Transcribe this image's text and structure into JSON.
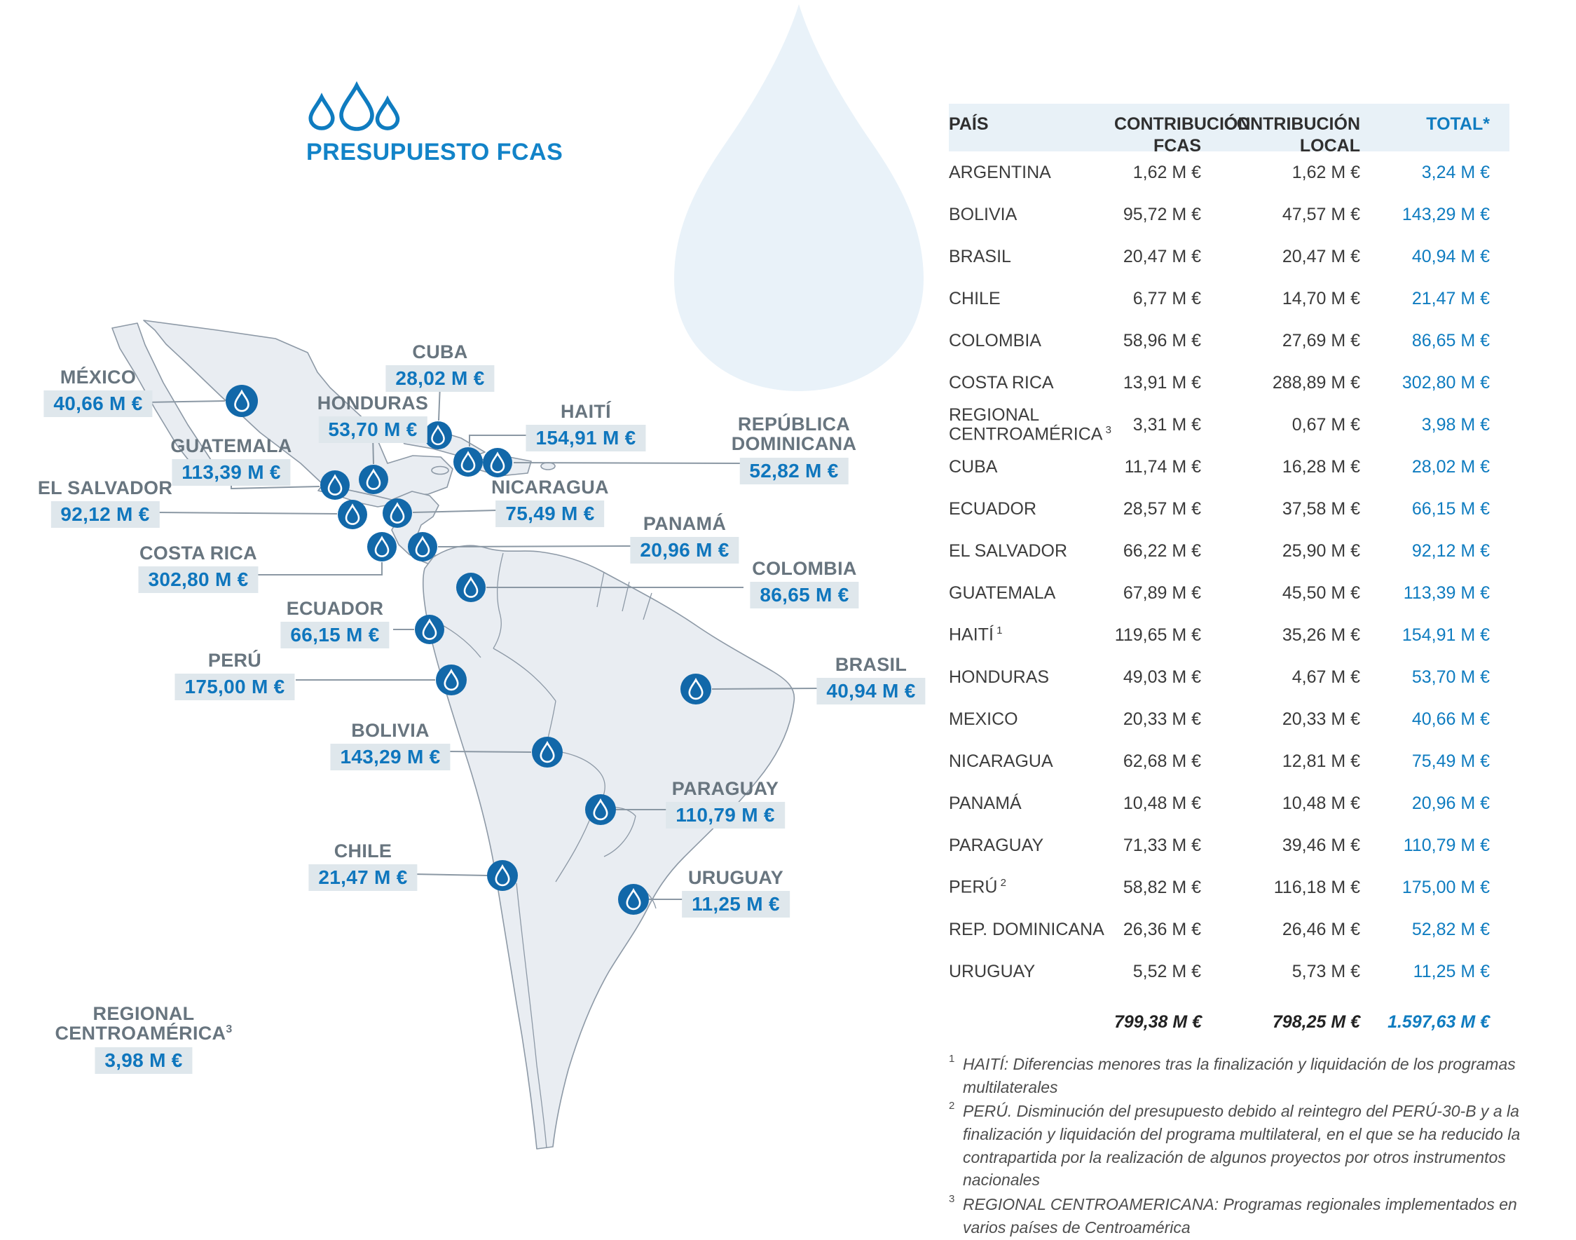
{
  "logo": {
    "title": "PRESUPUESTO FCAS",
    "icon": "three-water-drops-icon"
  },
  "colors": {
    "accent_blue": "#0f7cc0",
    "title_blue": "#1283c8",
    "marker_blue": "#1268a9",
    "label_gray": "#68757f",
    "value_box_bg": "#dfe7ec",
    "map_fill": "#e9edf2",
    "map_stroke": "#8d99a6",
    "table_header_bg": "#e8f1f7",
    "watermark_blue": "#e9f2f9"
  },
  "map": {
    "labels": {
      "mexico": {
        "name": "MÉXICO",
        "value": "40,66 M €"
      },
      "cuba": {
        "name": "CUBA",
        "value": "28,02 M €"
      },
      "honduras": {
        "name": "HONDURAS",
        "value": "53,70 M €"
      },
      "haiti": {
        "name": "HAITÍ",
        "value": "154,91 M €"
      },
      "dominicana": {
        "name": "REPÚBLICA\nDOMINICANA",
        "value": "52,82 M €"
      },
      "guatemala": {
        "name": "GUATEMALA",
        "value": "113,39 M €"
      },
      "salvador": {
        "name": "EL SALVADOR",
        "value": "92,12 M €"
      },
      "nicaragua": {
        "name": "NICARAGUA",
        "value": "75,49 M €"
      },
      "panama": {
        "name": "PANAMÁ",
        "value": "20,96 M €"
      },
      "costarica": {
        "name": "COSTA RICA",
        "value": "302,80 M €"
      },
      "colombia": {
        "name": "COLOMBIA",
        "value": "86,65 M €"
      },
      "ecuador": {
        "name": "ECUADOR",
        "value": "66,15 M €"
      },
      "peru": {
        "name": "PERÚ",
        "value": "175,00 M €"
      },
      "brasil": {
        "name": "BRASIL",
        "value": "40,94 M €"
      },
      "bolivia": {
        "name": "BOLIVIA",
        "value": "143,29 M €"
      },
      "paraguay": {
        "name": "PARAGUAY",
        "value": "110,79 M €"
      },
      "chile": {
        "name": "CHILE",
        "value": "21,47 M €"
      },
      "uruguay": {
        "name": "URUGUAY",
        "value": "11,25 M €"
      },
      "regional": {
        "name": "REGIONAL\nCENTROAMÉRICA",
        "sup": "3",
        "value": "3,98 M €"
      }
    }
  },
  "table": {
    "headers": {
      "pais": "PAÍS",
      "fcas": "CONTRIBUCIÓN\nFCAS",
      "local": "CONTRIBUCIÓN\nLOCAL",
      "total": "TOTAL*"
    },
    "rows": [
      {
        "pais": "ARGENTINA",
        "fcas": "1,62 M €",
        "local": "1,62 M €",
        "total": "3,24 M €"
      },
      {
        "pais": "BOLIVIA",
        "fcas": "95,72 M €",
        "local": "47,57 M €",
        "total": "143,29 M €"
      },
      {
        "pais": "BRASIL",
        "fcas": "20,47 M €",
        "local": "20,47 M €",
        "total": "40,94 M €"
      },
      {
        "pais": "CHILE",
        "fcas": "6,77 M €",
        "local": "14,70 M €",
        "total": "21,47 M €"
      },
      {
        "pais": "COLOMBIA",
        "fcas": "58,96 M €",
        "local": "27,69 M €",
        "total": "86,65 M €"
      },
      {
        "pais": "COSTA RICA",
        "fcas": "13,91 M €",
        "local": "288,89 M €",
        "total": "302,80 M €"
      },
      {
        "pais": "REGIONAL CENTROAMÉRICA",
        "sup": "3",
        "fcas": "3,31 M €",
        "local": "0,67 M €",
        "total": "3,98 M €"
      },
      {
        "pais": "CUBA",
        "fcas": "11,74 M €",
        "local": "16,28 M €",
        "total": "28,02 M €"
      },
      {
        "pais": "ECUADOR",
        "fcas": "28,57 M €",
        "local": "37,58 M €",
        "total": "66,15 M €"
      },
      {
        "pais": "EL SALVADOR",
        "fcas": "66,22 M €",
        "local": "25,90 M €",
        "total": "92,12 M €"
      },
      {
        "pais": "GUATEMALA",
        "fcas": "67,89 M €",
        "local": "45,50 M €",
        "total": "113,39 M €"
      },
      {
        "pais": "HAITÍ",
        "sup": "1",
        "fcas": "119,65 M €",
        "local": "35,26 M €",
        "total": "154,91 M €"
      },
      {
        "pais": "HONDURAS",
        "fcas": "49,03 M €",
        "local": "4,67 M €",
        "total": "53,70 M €"
      },
      {
        "pais": "MEXICO",
        "fcas": "20,33 M €",
        "local": "20,33 M €",
        "total": "40,66 M €"
      },
      {
        "pais": "NICARAGUA",
        "fcas": "62,68 M €",
        "local": "12,81 M €",
        "total": "75,49 M €"
      },
      {
        "pais": "PANAMÁ",
        "fcas": "10,48 M €",
        "local": "10,48 M €",
        "total": "20,96 M €"
      },
      {
        "pais": "PARAGUAY",
        "fcas": "71,33 M €",
        "local": "39,46 M €",
        "total": "110,79 M €"
      },
      {
        "pais": "PERÚ",
        "sup": "2",
        "fcas": "58,82 M €",
        "local": "116,18 M €",
        "total": "175,00 M €"
      },
      {
        "pais": "REP. DOMINICANA",
        "fcas": "26,36 M €",
        "local": "26,46 M €",
        "total": "52,82 M €"
      },
      {
        "pais": "URUGUAY",
        "fcas": "5,52 M €",
        "local": "5,73 M €",
        "total": "11,25 M €"
      }
    ],
    "totals": {
      "fcas": "799,38 M €",
      "local": "798,25 M €",
      "total": "1.597,63 M €"
    }
  },
  "footnotes": [
    {
      "sup": "1",
      "text": "HAITÍ: Diferencias menores tras la finalización y liquidación de los programas multilaterales"
    },
    {
      "sup": "2",
      "text": "PERÚ. Disminución del presupuesto debido al reintegro del PERÚ-30-B y a la finalización y liquidación del programa multilateral, en el que se ha reducido la contrapartida por la realización de algunos proyectos por otros instrumentos nacionales"
    },
    {
      "sup": "3",
      "text": "REGIONAL CENTROAMERICANA: Programas regionales implementados en varios países de Centroamérica"
    }
  ]
}
